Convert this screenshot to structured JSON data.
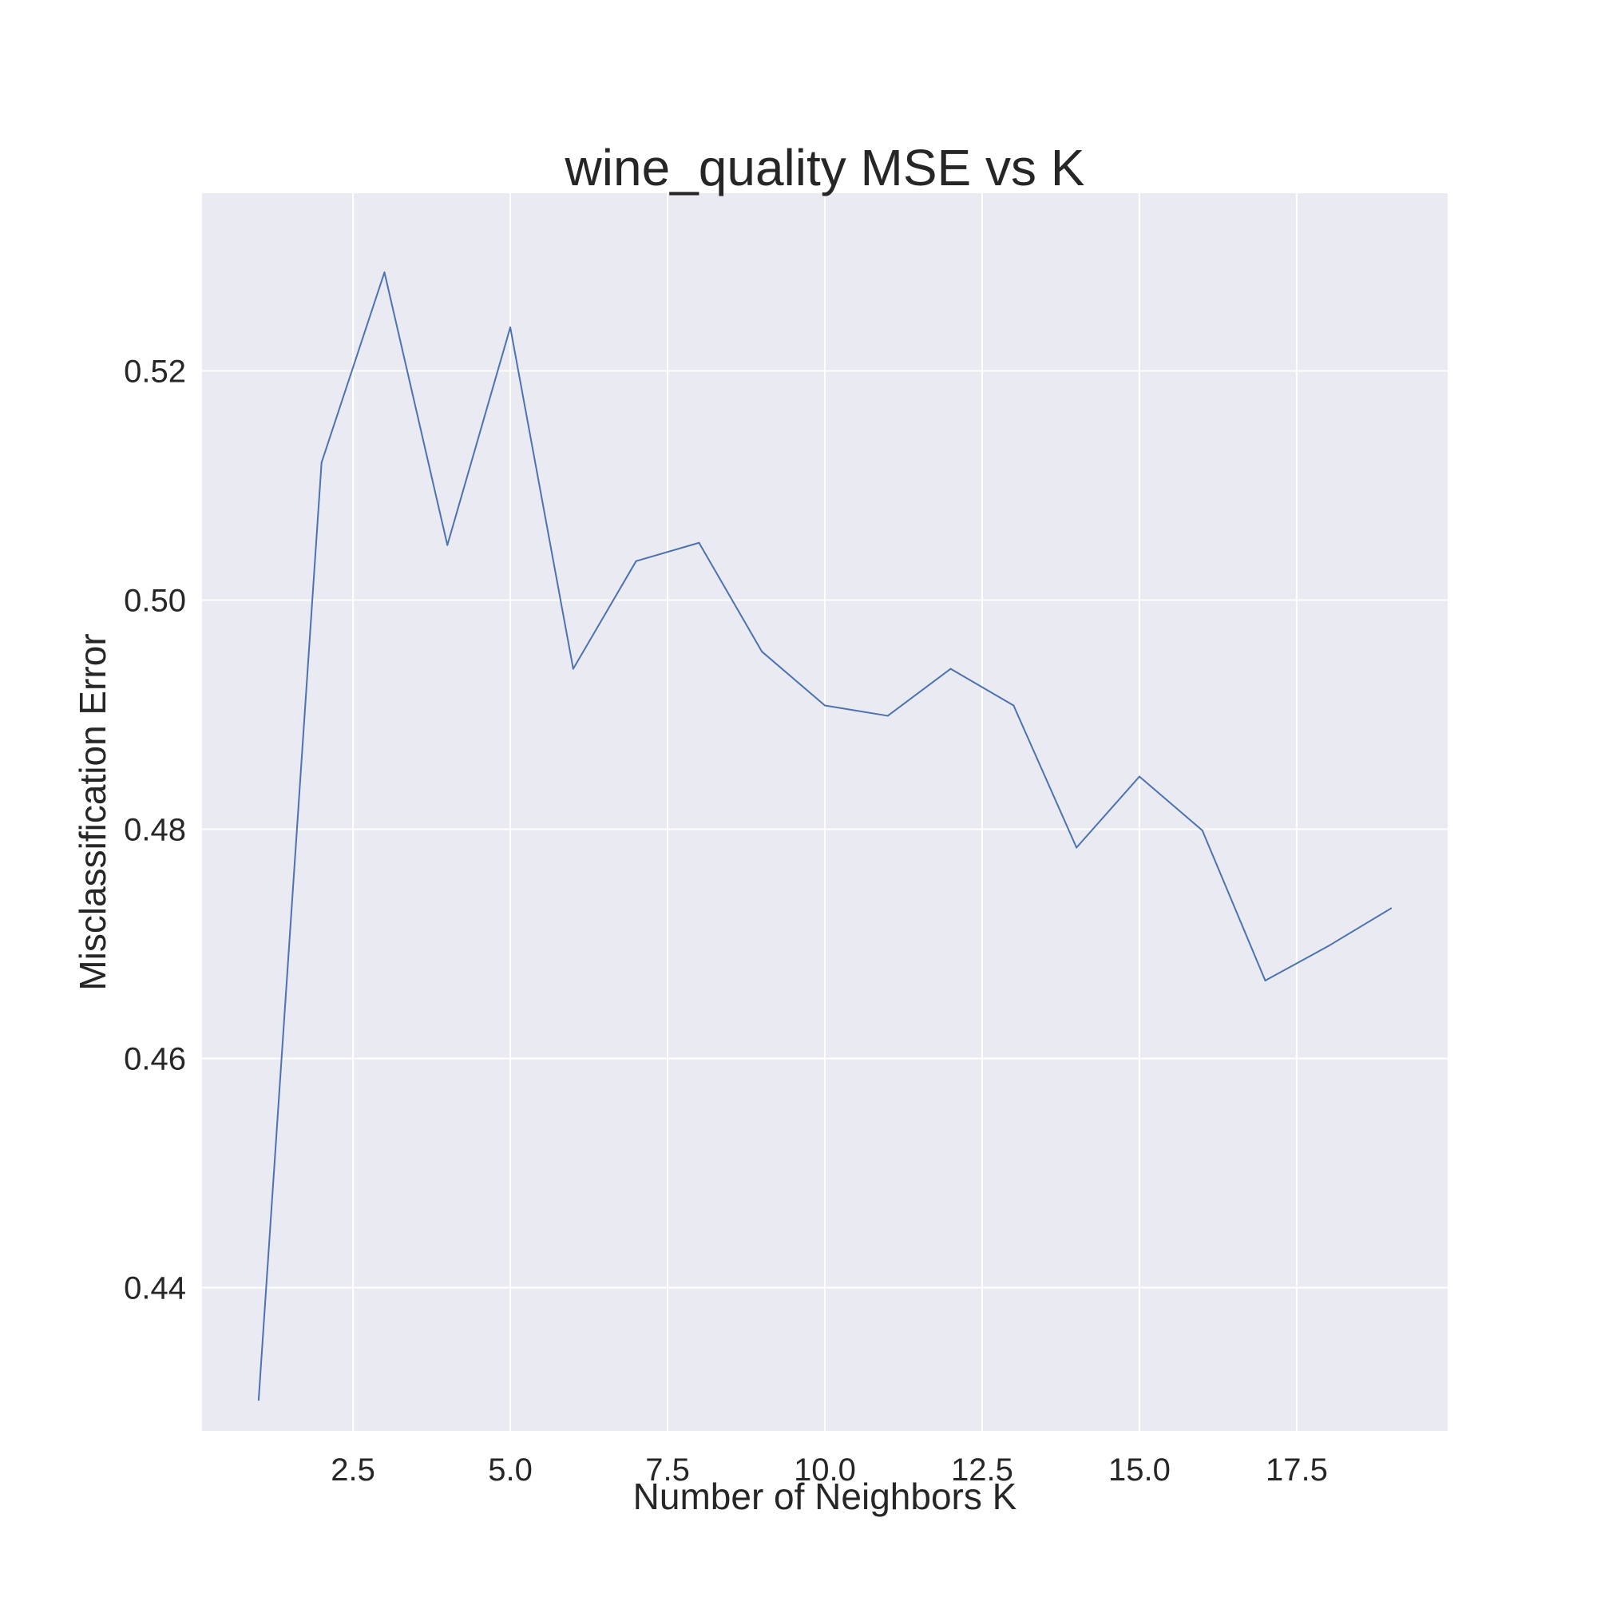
{
  "chart_data": {
    "type": "line",
    "title": "wine_quality MSE vs K",
    "xlabel": "Number of Neighbors K",
    "ylabel": "Misclassification Error",
    "xlim": [
      0.1,
      19.9
    ],
    "ylim": [
      0.4275,
      0.5355
    ],
    "xticks": [
      2.5,
      5.0,
      7.5,
      10.0,
      12.5,
      15.0,
      17.5
    ],
    "xtick_labels": [
      "2.5",
      "5.0",
      "7.5",
      "10.0",
      "12.5",
      "15.0",
      "17.5"
    ],
    "yticks": [
      0.44,
      0.46,
      0.48,
      0.5,
      0.52
    ],
    "ytick_labels": [
      "0.44",
      "0.46",
      "0.48",
      "0.50",
      "0.52"
    ],
    "grid": true,
    "background_color": "#eaeaf2",
    "line_color": "#4c72b0",
    "x": [
      1,
      2,
      3,
      4,
      5,
      6,
      7,
      8,
      9,
      10,
      11,
      12,
      13,
      14,
      15,
      16,
      17,
      18,
      19
    ],
    "values": [
      0.4302,
      0.512,
      0.5286,
      0.5048,
      0.5238,
      0.494,
      0.5034,
      0.505,
      0.4955,
      0.4908,
      0.4899,
      0.494,
      0.4908,
      0.4784,
      0.4846,
      0.4799,
      0.4668,
      0.4698,
      0.4731
    ]
  }
}
